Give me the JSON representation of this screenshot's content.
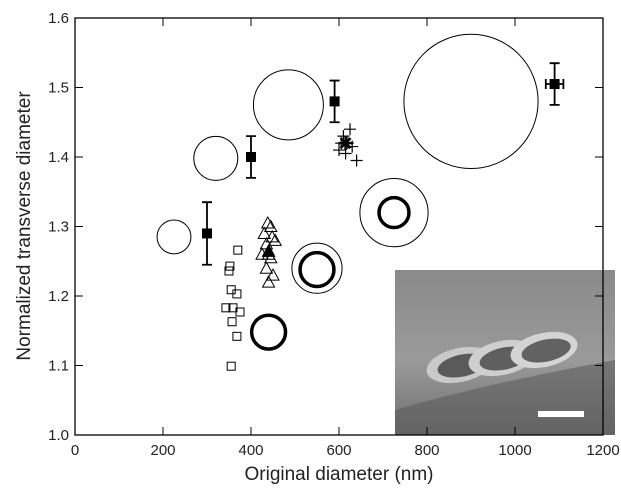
{
  "chart_data": {
    "type": "scatter",
    "xlabel": "Original diameter (nm)",
    "ylabel": "Normalized transverse diameter",
    "xlim": [
      0,
      1200
    ],
    "ylim": [
      1,
      1.6
    ],
    "xticks": [
      0,
      200,
      400,
      600,
      800,
      1000,
      1200
    ],
    "yticks": [
      {
        "value": 1,
        "label": "1.0"
      },
      1.1,
      1.2,
      1.3,
      1.4,
      1.5,
      1.6
    ],
    "series": [
      {
        "marker": "filled-square",
        "color": "#000000",
        "x": [
          300,
          400,
          590,
          1090
        ],
        "values": [
          1.29,
          1.4,
          1.48,
          1.505
        ],
        "errors": [
          0.045,
          0.03,
          0.03,
          0.03
        ],
        "xerrors": [
          null,
          null,
          null,
          20
        ]
      },
      {
        "marker": "open-square",
        "color": "#000000",
        "x": [
          370,
          352,
          350,
          355,
          368,
          343,
          359,
          375,
          357,
          368,
          355
        ],
        "values": [
          1.266,
          1.243,
          1.236,
          1.209,
          1.203,
          1.183,
          1.183,
          1.177,
          1.163,
          1.142,
          1.099
        ]
      },
      {
        "marker": "open-triangle",
        "color": "#000000",
        "x": [
          438,
          445,
          430,
          448,
          435,
          455,
          425,
          440,
          445,
          435,
          440,
          450
        ],
        "values": [
          1.305,
          1.3,
          1.29,
          1.285,
          1.275,
          1.28,
          1.26,
          1.26,
          1.255,
          1.24,
          1.22,
          1.23
        ]
      },
      {
        "marker": "filled-triangle",
        "color": "#000000",
        "x": [
          440
        ],
        "values": [
          1.265
        ]
      },
      {
        "marker": "plus",
        "color": "#000000",
        "x": [
          600,
          610,
          620,
          630,
          615,
          640,
          625,
          605
        ],
        "values": [
          1.41,
          1.43,
          1.42,
          1.415,
          1.405,
          1.395,
          1.44,
          1.42
        ]
      },
      {
        "marker": "star",
        "color": "#000000",
        "x": [
          615
        ],
        "values": [
          1.42
        ]
      },
      {
        "marker": "circle",
        "stroke": 1,
        "color": "#000000",
        "x": [
          225,
          320,
          485,
          900,
          725,
          550
        ],
        "values": [
          1.285,
          1.398,
          1.475,
          1.48,
          1.32,
          1.24
        ],
        "sizes": [
          77,
          100,
          159,
          305,
          155,
          114
        ]
      },
      {
        "marker": "circle",
        "stroke": 3.5,
        "color": "#000000",
        "x": [
          440,
          550,
          725
        ],
        "values": [
          1.148,
          1.238,
          1.32
        ],
        "sizes": [
          77,
          77,
          68
        ]
      }
    ]
  }
}
